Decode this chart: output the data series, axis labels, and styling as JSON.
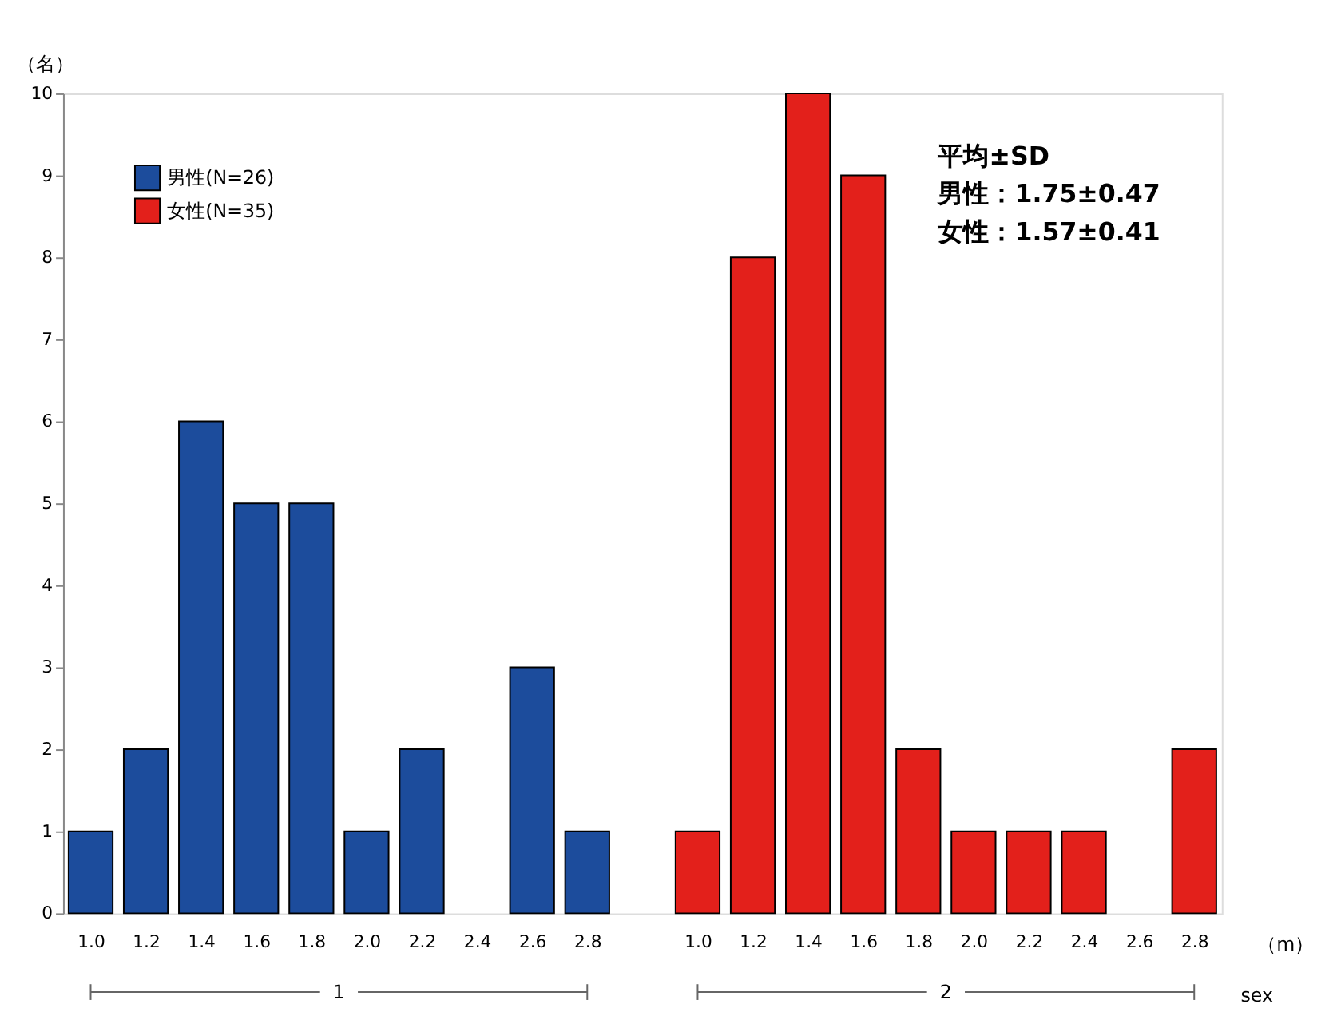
{
  "chart_data": {
    "type": "bar",
    "ylabel": "（名）",
    "xlabel": "（m）",
    "categories": [
      "1.0",
      "1.2",
      "1.4",
      "1.6",
      "1.8",
      "2.0",
      "2.2",
      "2.4",
      "2.6",
      "2.8",
      "1.0",
      "1.2",
      "1.4",
      "1.6",
      "1.8",
      "2.0",
      "2.2",
      "2.4",
      "2.6",
      "2.8"
    ],
    "series": [
      {
        "name": "男性(N=26)",
        "color": "#1c4c9c",
        "values": [
          1,
          2,
          6,
          5,
          5,
          1,
          2,
          0,
          3,
          1,
          null,
          null,
          null,
          null,
          null,
          null,
          null,
          null,
          null,
          null
        ]
      },
      {
        "name": "女性(N=35)",
        "color": "#e3201b",
        "values": [
          null,
          null,
          null,
          null,
          null,
          null,
          null,
          null,
          null,
          null,
          1,
          8,
          10,
          9,
          2,
          1,
          1,
          1,
          0,
          2
        ]
      }
    ],
    "ylim": [
      0,
      10
    ],
    "yticks": [
      0,
      1,
      2,
      3,
      4,
      5,
      6,
      7,
      8,
      9,
      10
    ],
    "grid": false,
    "legend": "top left",
    "annotations": [
      "平均±SD",
      "男性：1.75±0.47",
      "女性：1.57±0.41",
      "1",
      "2",
      "sex"
    ]
  }
}
